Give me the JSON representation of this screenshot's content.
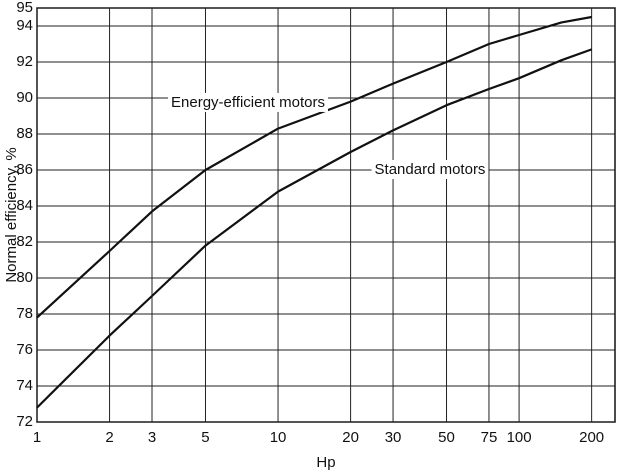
{
  "chart_data": {
    "type": "line",
    "xlabel": "Hp",
    "ylabel": "Normal efficiency, %",
    "x": [
      1,
      2,
      3,
      5,
      10,
      20,
      30,
      50,
      75,
      100,
      150,
      200
    ],
    "series": [
      {
        "name": "Energy-efficient motors",
        "color": "#111111",
        "values": [
          77.8,
          81.5,
          83.7,
          86,
          88.3,
          89.8,
          90.8,
          92,
          93,
          93.5,
          94.2,
          94.5
        ]
      },
      {
        "name": "Standard motors",
        "color": "#111111",
        "values": [
          72.8,
          76.8,
          79,
          81.8,
          84.8,
          87,
          88.2,
          89.6,
          90.5,
          91.1,
          92.1,
          92.7
        ]
      }
    ],
    "xscale": "log",
    "xlim": [
      1,
      250
    ],
    "xticks": [
      1,
      2,
      3,
      5,
      10,
      20,
      30,
      50,
      75,
      100,
      200
    ],
    "ylim": [
      72,
      95
    ],
    "yticks": [
      72,
      74,
      76,
      78,
      80,
      82,
      84,
      86,
      88,
      90,
      92,
      94,
      95
    ],
    "grid": true
  }
}
